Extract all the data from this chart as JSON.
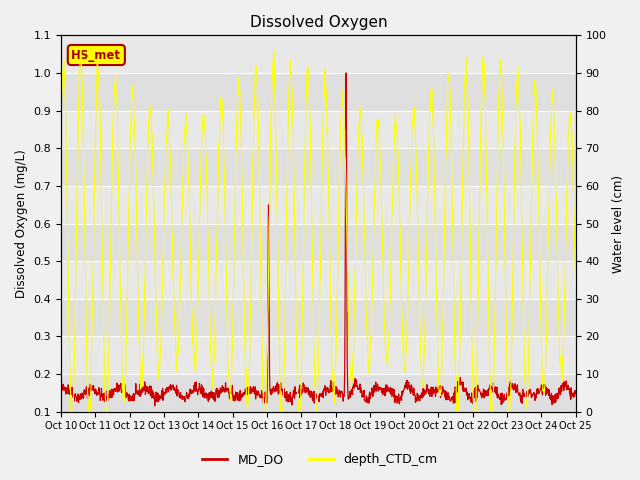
{
  "title": "Dissolved Oxygen",
  "ylabel_left": "Dissolved Oxygen (mg/L)",
  "ylabel_right": "Water level (cm)",
  "ylim_left": [
    0.1,
    1.1
  ],
  "ylim_right": [
    0,
    100
  ],
  "bg_color": "#f0f0f0",
  "plot_bg_color": "#e8e8e8",
  "xtick_labels": [
    "Oct 10",
    "Oct 11",
    "Oct 12",
    "Oct 13",
    "Oct 14",
    "Oct 15",
    "Oct 16",
    "Oct 17",
    "Oct 18",
    "Oct 19",
    "Oct 20",
    "Oct 21",
    "Oct 22",
    "Oct 23",
    "Oct 24",
    "Oct 25"
  ],
  "yticks_left": [
    0.1,
    0.2,
    0.3,
    0.4,
    0.5,
    0.6,
    0.7,
    0.8,
    0.9,
    1.0,
    1.1
  ],
  "yticks_right": [
    0,
    10,
    20,
    30,
    40,
    50,
    60,
    70,
    80,
    90,
    100
  ],
  "legend_labels": [
    "MD_DO",
    "depth_CTD_cm"
  ],
  "line_colors": [
    "#cc0000",
    "#ffff00"
  ],
  "annotation_text": "HS_met",
  "annotation_color": "#aa0000",
  "annotation_bg": "#ffff00",
  "annotation_border": "#aa0000"
}
